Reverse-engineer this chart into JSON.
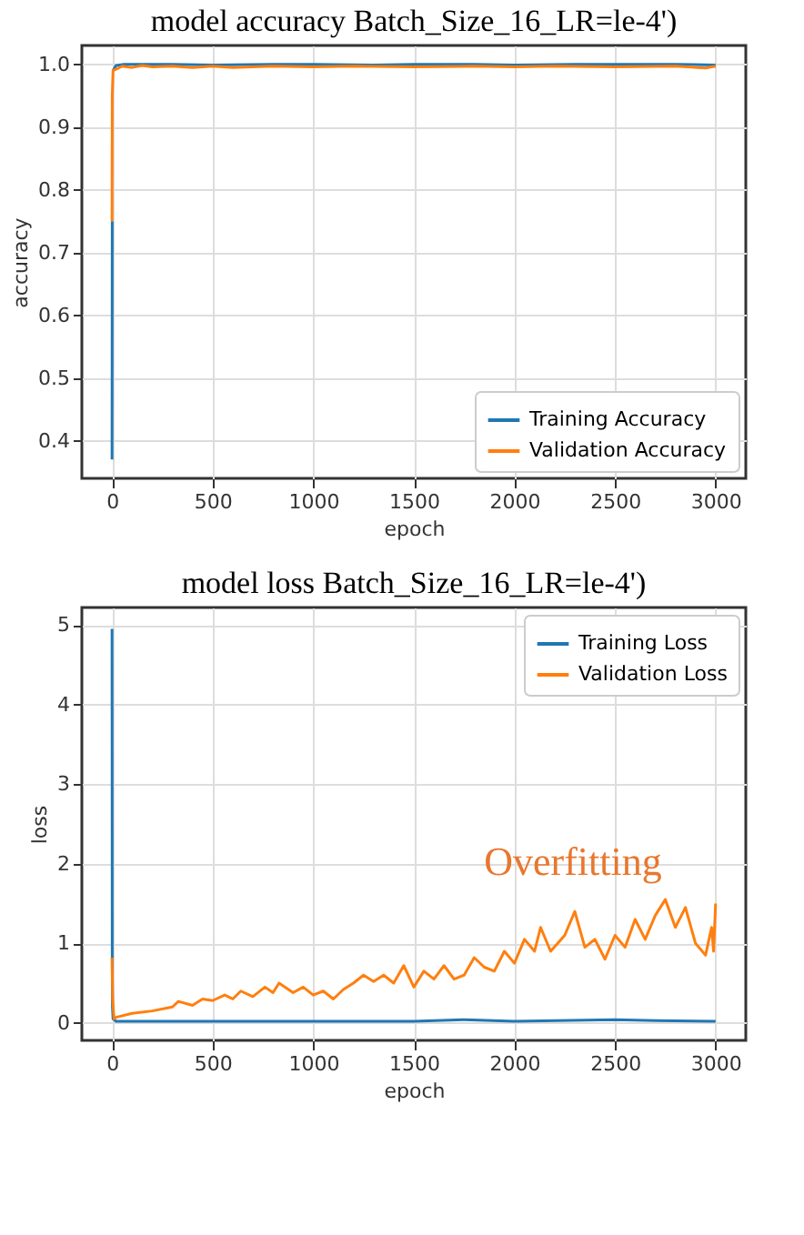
{
  "chart_data": [
    {
      "type": "line",
      "title": "model accuracy Batch_Size_16_LR=le-4')",
      "xlabel": "epoch",
      "ylabel": "accuracy",
      "xlim": [
        -150,
        3150
      ],
      "xticks": [
        0,
        500,
        1000,
        1500,
        2000,
        2500,
        3000
      ],
      "ylim": [
        0.34,
        1.03
      ],
      "yticks": [
        0.4,
        0.5,
        0.6,
        0.7,
        0.8,
        0.9,
        {
          "value": 1.0,
          "label": "1.0"
        }
      ],
      "grid": true,
      "legend": "bottom right",
      "line_style": "solid",
      "series": [
        {
          "name": "Training Accuracy",
          "color": "#1f77b4",
          "x": [
            0,
            1,
            2,
            5,
            20,
            60,
            150,
            300,
            500,
            800,
            1000,
            1300,
            1500,
            1800,
            2000,
            2300,
            2500,
            2800,
            3000
          ],
          "values": [
            0.37,
            0.75,
            null,
            0.99,
            0.998,
            1.0,
            1.0,
            1.0,
            0.999,
            1.0,
            1.0,
            0.999,
            1.0,
            1.0,
            0.999,
            1.0,
            1.0,
            1.0,
            0.999
          ]
        },
        {
          "name": "Validation Accuracy",
          "color": "#ff7f0e",
          "x": [
            0,
            1,
            5,
            20,
            50,
            100,
            150,
            200,
            300,
            400,
            500,
            600,
            800,
            1000,
            1200,
            1500,
            1800,
            2000,
            2200,
            2500,
            2800,
            2950,
            3000
          ],
          "values": [
            0.75,
            0.95,
            0.99,
            0.992,
            0.997,
            0.995,
            0.998,
            0.996,
            0.997,
            0.995,
            0.997,
            0.995,
            0.997,
            0.996,
            0.997,
            0.996,
            0.997,
            0.996,
            0.997,
            0.996,
            0.997,
            0.994,
            0.997
          ]
        }
      ]
    },
    {
      "type": "line",
      "title": "model loss Batch_Size_16_LR=le-4')",
      "xlabel": "epoch",
      "ylabel": "loss",
      "xlim": [
        -150,
        3150
      ],
      "xticks": [
        0,
        500,
        1000,
        1500,
        2000,
        2500,
        3000
      ],
      "ylim": [
        -0.22,
        5.22
      ],
      "yticks": [
        0,
        1,
        2,
        3,
        4,
        5
      ],
      "grid": true,
      "legend": "top right",
      "line_style": "solid",
      "annotations": [
        "Overfitting"
      ],
      "series": [
        {
          "name": "Training Loss",
          "color": "#1f77b4",
          "x": [
            0,
            1,
            2,
            5,
            20,
            100,
            500,
            1000,
            1500,
            1750,
            2000,
            2500,
            2700,
            3000
          ],
          "values": [
            4.95,
            0.8,
            0.2,
            0.05,
            0.02,
            0.02,
            0.02,
            0.02,
            0.02,
            0.04,
            0.02,
            0.04,
            0.03,
            0.02
          ]
        },
        {
          "name": "Validation Loss",
          "color": "#ff7f0e",
          "x": [
            0,
            3,
            10,
            20,
            100,
            200,
            300,
            330,
            400,
            450,
            500,
            560,
            600,
            640,
            700,
            760,
            800,
            830,
            900,
            950,
            1000,
            1050,
            1100,
            1150,
            1200,
            1250,
            1300,
            1350,
            1400,
            1450,
            1500,
            1550,
            1600,
            1650,
            1700,
            1750,
            1800,
            1850,
            1900,
            1950,
            2000,
            2050,
            2100,
            2130,
            2180,
            2250,
            2300,
            2350,
            2400,
            2450,
            2500,
            2550,
            2600,
            2650,
            2700,
            2750,
            2800,
            2850,
            2900,
            2950,
            2980,
            2990,
            3000
          ],
          "values": [
            0.82,
            0.3,
            0.05,
            0.07,
            0.12,
            0.15,
            0.2,
            0.27,
            0.22,
            0.3,
            0.28,
            0.35,
            0.3,
            0.4,
            0.33,
            0.45,
            0.38,
            0.5,
            0.38,
            0.45,
            0.35,
            0.4,
            0.3,
            0.42,
            0.5,
            0.6,
            0.52,
            0.6,
            0.5,
            0.72,
            0.45,
            0.65,
            0.55,
            0.72,
            0.55,
            0.6,
            0.82,
            0.7,
            0.65,
            0.9,
            0.75,
            1.05,
            0.9,
            1.2,
            0.9,
            1.1,
            1.4,
            0.95,
            1.05,
            0.8,
            1.1,
            0.95,
            1.3,
            1.05,
            1.35,
            1.55,
            1.2,
            1.45,
            1.0,
            0.85,
            1.2,
            0.9,
            1.5
          ]
        }
      ]
    }
  ]
}
